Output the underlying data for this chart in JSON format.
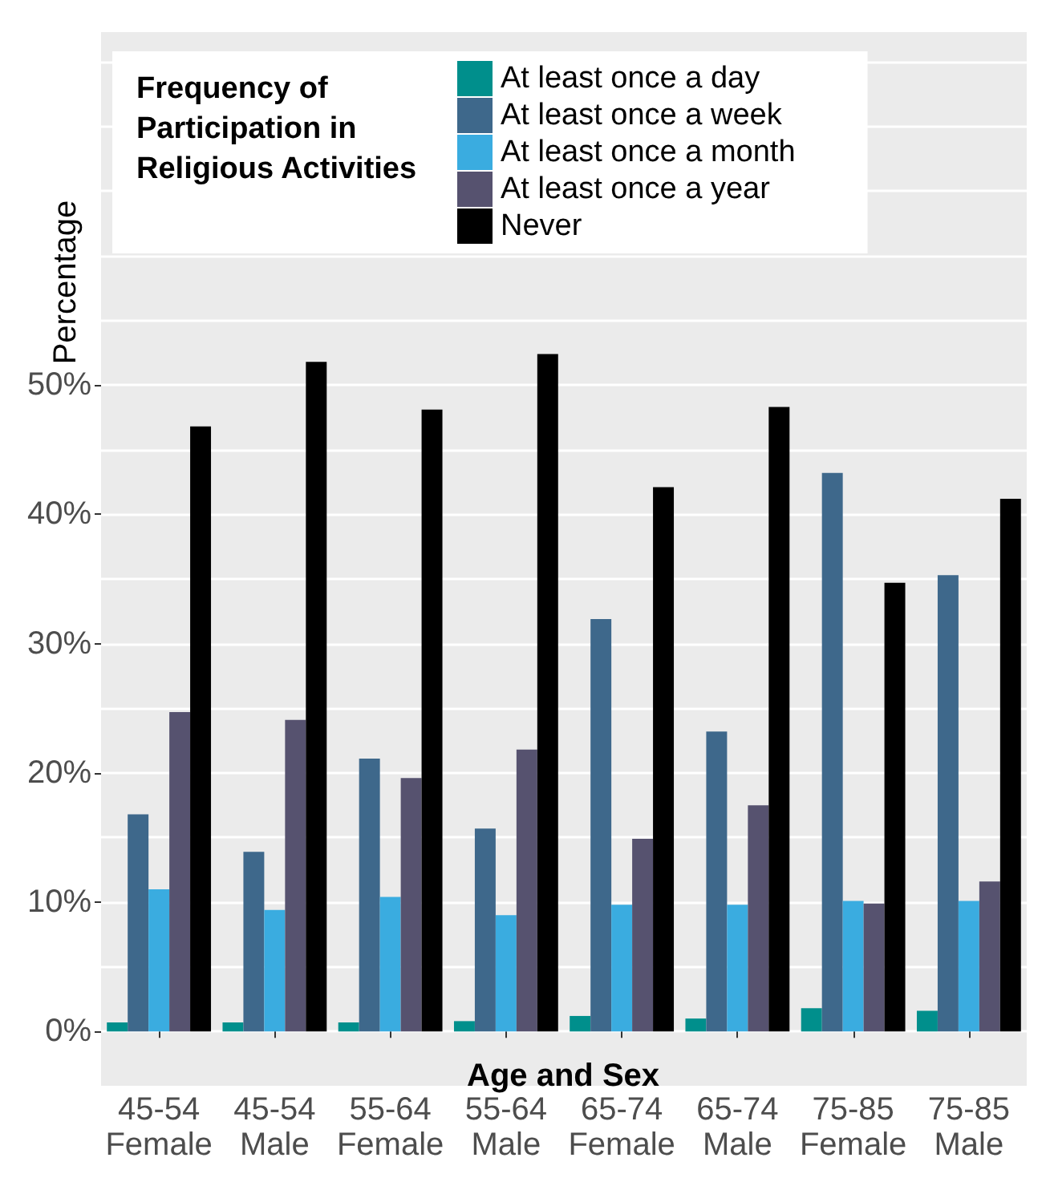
{
  "chart_data": {
    "type": "bar",
    "xlabel": "Age and Sex",
    "ylabel": "Percentage",
    "legend_title": "Frequency of\nParticipation in\nReligious Activities",
    "categories": [
      "45-54\nFemale",
      "45-54\nMale",
      "55-64\nFemale",
      "55-64\nMale",
      "65-74\nFemale",
      "65-74\nMale",
      "75-85\nFemale",
      "75-85\nMale"
    ],
    "series": [
      {
        "name": "At least once a day",
        "color": "#008f8c",
        "values": [
          0.7,
          0.7,
          0.7,
          0.8,
          1.2,
          1.0,
          1.8,
          1.6
        ]
      },
      {
        "name": "At least once a week",
        "color": "#3e688b",
        "values": [
          16.8,
          13.9,
          21.1,
          15.7,
          31.9,
          23.2,
          43.2,
          35.3
        ]
      },
      {
        "name": "At least once a month",
        "color": "#3aace0",
        "values": [
          11.0,
          9.4,
          10.4,
          9.0,
          9.8,
          9.8,
          10.1,
          10.1
        ]
      },
      {
        "name": "At least once a year",
        "color": "#56526f",
        "values": [
          24.7,
          24.1,
          19.6,
          21.8,
          14.9,
          17.5,
          9.9,
          11.6
        ]
      },
      {
        "name": "Never",
        "color": "#000000",
        "values": [
          46.8,
          51.8,
          48.1,
          52.4,
          42.1,
          48.3,
          34.7,
          41.2
        ]
      }
    ],
    "ylim": [
      -4.2,
      77.3
    ],
    "yticks": [
      {
        "value": 0,
        "label": "0%"
      },
      {
        "value": 5,
        "label": null
      },
      {
        "value": 10,
        "label": "10%"
      },
      {
        "value": 15,
        "label": null
      },
      {
        "value": 20,
        "label": "20%"
      },
      {
        "value": 25,
        "label": null
      },
      {
        "value": 30,
        "label": "30%"
      },
      {
        "value": 35,
        "label": null
      },
      {
        "value": 40,
        "label": "40%"
      },
      {
        "value": 45,
        "label": null
      },
      {
        "value": 50,
        "label": "50%"
      },
      {
        "value": 55,
        "label": null
      },
      {
        "value": 60,
        "label": null
      },
      {
        "value": 65,
        "label": null
      },
      {
        "value": 70,
        "label": null
      },
      {
        "value": 75,
        "label": null
      }
    ],
    "grid": "y",
    "legend": "top"
  }
}
